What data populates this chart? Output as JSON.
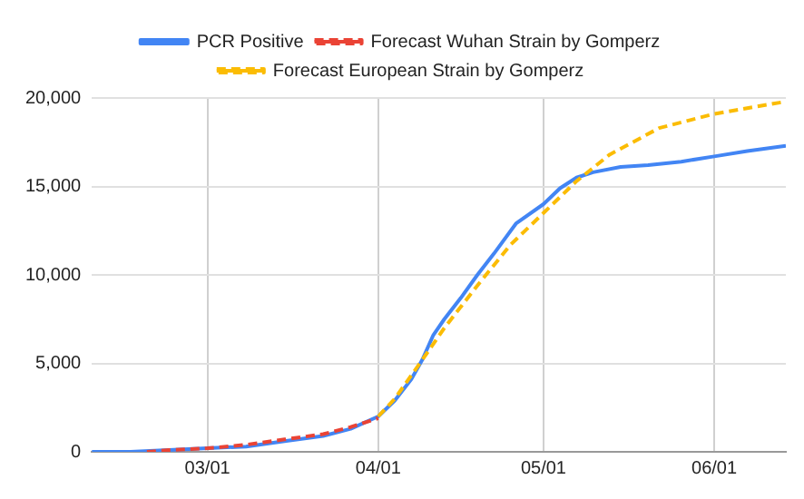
{
  "chart_data": {
    "type": "line",
    "xlim": [
      "--02-08",
      "--06-14"
    ],
    "xticks": [
      {
        "value": "--03-01",
        "label": "03/01"
      },
      {
        "value": "--04-01",
        "label": "04/01"
      },
      {
        "value": "--05-01",
        "label": "05/01"
      },
      {
        "value": "--06-01",
        "label": "06/01"
      }
    ],
    "ylim": [
      0,
      20000
    ],
    "yticks": [
      {
        "value": 0,
        "label": "0"
      },
      {
        "value": 5000,
        "label": "5,000"
      },
      {
        "value": 10000,
        "label": "10,000"
      },
      {
        "value": 15000,
        "label": "15,000"
      },
      {
        "value": 20000,
        "label": "20,000"
      }
    ],
    "grid": true,
    "legend": "top",
    "marker": "none",
    "series": [
      {
        "name": "PCR Positive",
        "color": "#4285f4",
        "line_style": "solid",
        "x": [
          "--02-08",
          "--02-15",
          "--02-22",
          "--03-01",
          "--03-08",
          "--03-15",
          "--03-22",
          "--03-27",
          "--04-01",
          "--04-04",
          "--04-07",
          "--04-09",
          "--04-11",
          "--04-13",
          "--04-16",
          "--04-19",
          "--04-22",
          "--04-26",
          "--05-01",
          "--05-04",
          "--05-07",
          "--05-10",
          "--05-15",
          "--05-20",
          "--05-26",
          "--06-01",
          "--06-07",
          "--06-14"
        ],
        "values": [
          0,
          0,
          100,
          200,
          300,
          600,
          900,
          1300,
          2000,
          2900,
          4100,
          5200,
          6600,
          7500,
          8700,
          10000,
          11200,
          12900,
          14000,
          14900,
          15500,
          15800,
          16100,
          16200,
          16400,
          16700,
          17000,
          17300
        ]
      },
      {
        "name": "Forecast Wuhan Strain by Gomperz",
        "color": "#ea4335",
        "line_style": "dashed",
        "x": [
          "--02-18",
          "--02-22",
          "--03-01",
          "--03-08",
          "--03-15",
          "--03-22",
          "--03-27",
          "--04-01"
        ],
        "values": [
          0,
          100,
          200,
          400,
          700,
          1000,
          1400,
          1900
        ]
      },
      {
        "name": "Forecast European Strain by Gomperz",
        "color": "#fbbc04",
        "line_style": "dashed",
        "x": [
          "--04-01",
          "--04-04",
          "--04-09",
          "--04-13",
          "--04-19",
          "--04-25",
          "--05-01",
          "--05-07",
          "--05-13",
          "--05-22",
          "--06-01",
          "--06-14"
        ],
        "values": [
          2000,
          3000,
          5200,
          7000,
          9400,
          11700,
          13500,
          15300,
          16800,
          18300,
          19100,
          19800
        ]
      }
    ]
  }
}
